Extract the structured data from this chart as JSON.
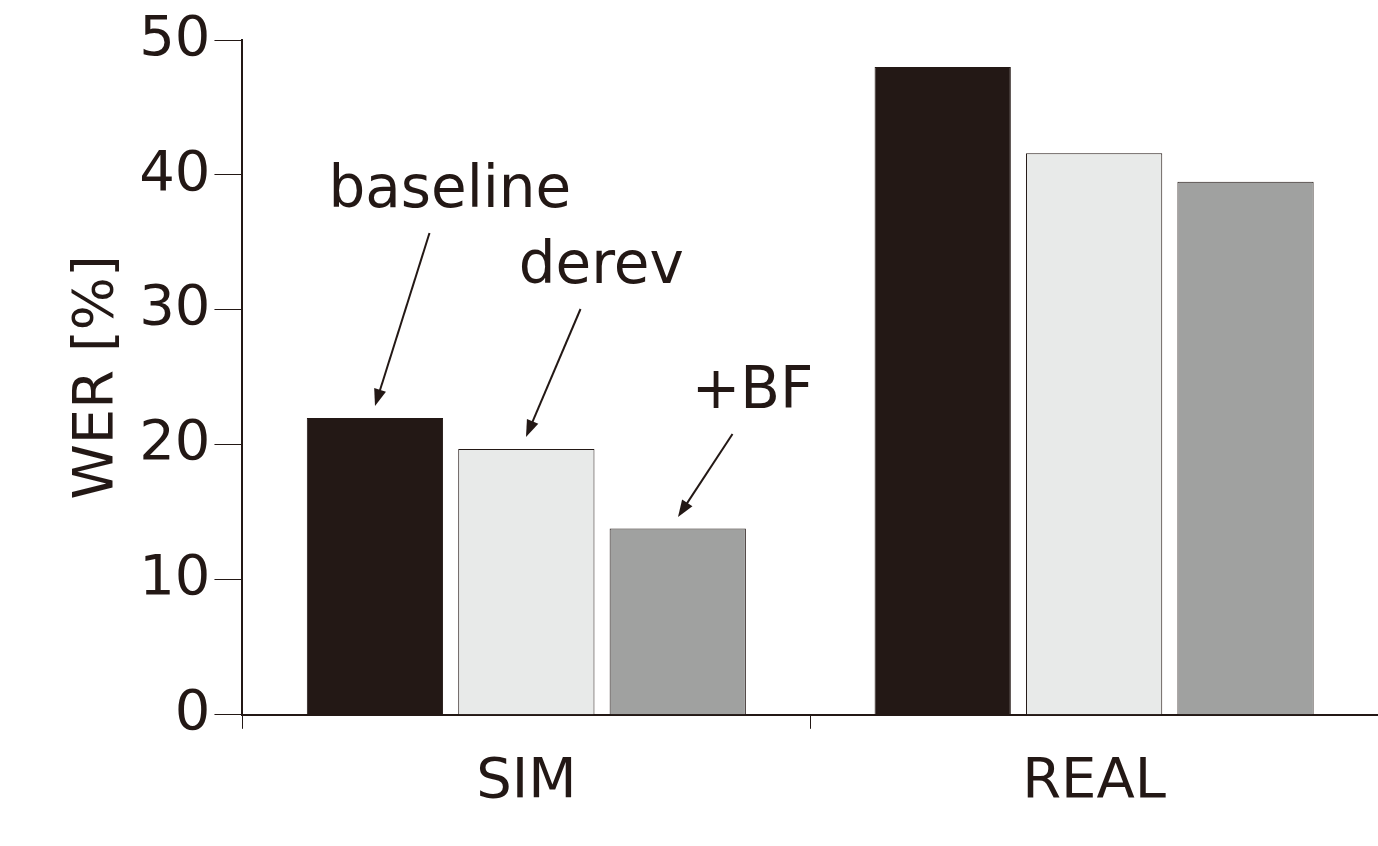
{
  "chart_data": {
    "type": "bar",
    "ylabel": "WER [%]",
    "categories": [
      "SIM",
      "REAL"
    ],
    "series": [
      {
        "color": "#231815",
        "values": [
          22,
          48
        ]
      },
      {
        "color": "#e8eae9",
        "values": [
          19.7,
          41.6
        ]
      },
      {
        "color": "#a0a1a0",
        "values": [
          13.8,
          39.5
        ]
      }
    ],
    "annotations": [
      "baseline",
      "derev",
      "+BF"
    ],
    "ylim": [
      0,
      50
    ],
    "yticks": [
      0,
      10,
      20,
      30,
      40,
      50
    ],
    "grid": false,
    "legend": false
  }
}
